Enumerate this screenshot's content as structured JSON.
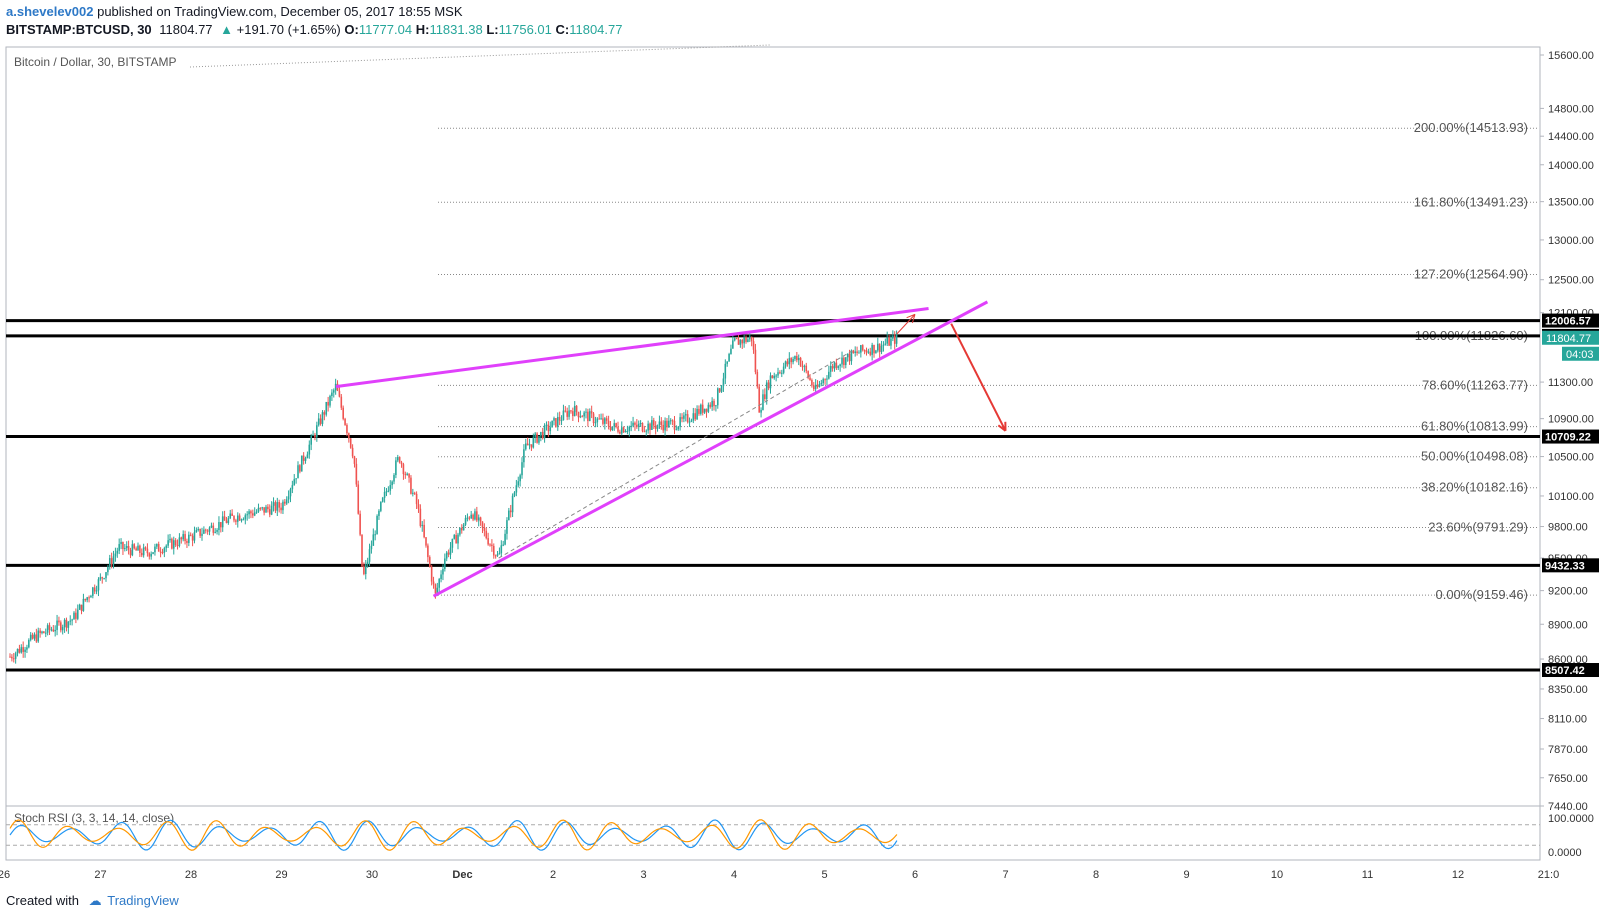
{
  "header": {
    "author": "a.shevelev002",
    "published_text": "published on TradingView.com, December 05, 2017 18:55 MSK",
    "symbol": "BITSTAMP:BTCUSD, 30",
    "last": "11804.77",
    "change_arrow": "▲",
    "change": "+191.70 (+1.65%)",
    "o_label": "O:",
    "o_val": "11777.04",
    "h_label": "H:",
    "h_val": "11831.38",
    "l_label": "L:",
    "l_val": "11756.01",
    "c_label": "C:",
    "c_val": "11804.77"
  },
  "footer": {
    "created_with": "Created with",
    "brand": "TradingView"
  },
  "colors": {
    "up": "#26a69a",
    "down": "#ef5350",
    "wedge": "#e040fb",
    "arrow": "#e53935",
    "level": "#000000",
    "brand": "#2e79c7"
  },
  "chart_data": {
    "type": "candlestick",
    "title": "Bitcoin / Dollar, 30, BITSTAMP",
    "price_scale": "log",
    "ylim": [
      7440,
      15600
    ],
    "y_ticks": [
      "15600.00",
      "14800.00",
      "14400.00",
      "14000.00",
      "13500.00",
      "13000.00",
      "12500.00",
      "12100.00",
      "11300.00",
      "10900.00",
      "10500.00",
      "10100.00",
      "9800.00",
      "9500.00",
      "9200.00",
      "8900.00",
      "8600.00",
      "8350.00",
      "8110.00",
      "7870.00",
      "7650.00",
      "7440.00"
    ],
    "x_ticks": [
      "26",
      "27",
      "28",
      "29",
      "30",
      "Dec",
      "2",
      "3",
      "4",
      "5",
      "6",
      "7",
      "8",
      "9",
      "10",
      "11",
      "12",
      "21:0"
    ],
    "price_path": [
      {
        "x": "26",
        "y": 8620
      },
      {
        "x": "26.3",
        "y": 8800
      },
      {
        "x": "26.7",
        "y": 8950
      },
      {
        "x": "26.9",
        "y": 9200
      },
      {
        "x": "27",
        "y": 9300
      },
      {
        "x": "27.2",
        "y": 9600
      },
      {
        "x": "27.5",
        "y": 9550
      },
      {
        "x": "28",
        "y": 9700
      },
      {
        "x": "28.5",
        "y": 9900
      },
      {
        "x": "29",
        "y": 10000
      },
      {
        "x": "29.3",
        "y": 10600
      },
      {
        "x": "29.6",
        "y": 11250
      },
      {
        "x": "29.8",
        "y": 10500
      },
      {
        "x": "29.9",
        "y": 9300
      },
      {
        "x": "30.1",
        "y": 10000
      },
      {
        "x": "30.3",
        "y": 10500
      },
      {
        "x": "30.5",
        "y": 10000
      },
      {
        "x": "30.7",
        "y": 9150
      },
      {
        "x": "30.8",
        "y": 9500
      },
      {
        "x": "Dec 0.1",
        "y": 9950
      },
      {
        "x": "Dec 0.4",
        "y": 9500
      },
      {
        "x": "Dec 0.7",
        "y": 10600
      },
      {
        "x": "1.2",
        "y": 11000
      },
      {
        "x": "1.7",
        "y": 10800
      },
      {
        "x": "2.4",
        "y": 10850
      },
      {
        "x": "2.8",
        "y": 11100
      },
      {
        "x": "3",
        "y": 11750
      },
      {
        "x": "3.2",
        "y": 11800
      },
      {
        "x": "3.28",
        "y": 11000
      },
      {
        "x": "3.4",
        "y": 11350
      },
      {
        "x": "3.7",
        "y": 11600
      },
      {
        "x": "3.9",
        "y": 11200
      },
      {
        "x": "4.1",
        "y": 11500
      },
      {
        "x": "4.4",
        "y": 11650
      },
      {
        "x": "4.6",
        "y": 11700
      },
      {
        "x": "4.8",
        "y": 11800
      }
    ],
    "last_price": "11804.77",
    "countdown": "04:03",
    "levels": [
      {
        "value": 12006.57,
        "label": "12006.57"
      },
      {
        "value": 11826.23,
        "label": "11826.23"
      },
      {
        "value": 10709.22,
        "label": "10709.22"
      },
      {
        "value": 9432.33,
        "label": "9432.33"
      },
      {
        "value": 8507.42,
        "label": "8507.42"
      }
    ],
    "fibonacci": [
      {
        "value": 14513.93,
        "label": "200.00%(14513.93)"
      },
      {
        "value": 13491.23,
        "label": "161.80%(13491.23)"
      },
      {
        "value": 12564.9,
        "label": "127.20%(12564.90)"
      },
      {
        "value": 11826.6,
        "label": "100.00%(11826.60)"
      },
      {
        "value": 11263.77,
        "label": "78.60%(11263.77)"
      },
      {
        "value": 10813.99,
        "label": "61.80%(10813.99)"
      },
      {
        "value": 10498.08,
        "label": "50.00%(10498.08)"
      },
      {
        "value": 10182.16,
        "label": "38.20%(10182.16)"
      },
      {
        "value": 9791.29,
        "label": "23.60%(9791.29)"
      },
      {
        "value": 9159.46,
        "label": "0.00%(9159.46)"
      }
    ],
    "oscillator": {
      "name": "Stoch RSI (3, 3, 14, 14, close)",
      "ylim": [
        0,
        100
      ],
      "y_ticks": [
        "100.0000",
        "0.0000"
      ],
      "bands": [
        80,
        20
      ]
    }
  }
}
